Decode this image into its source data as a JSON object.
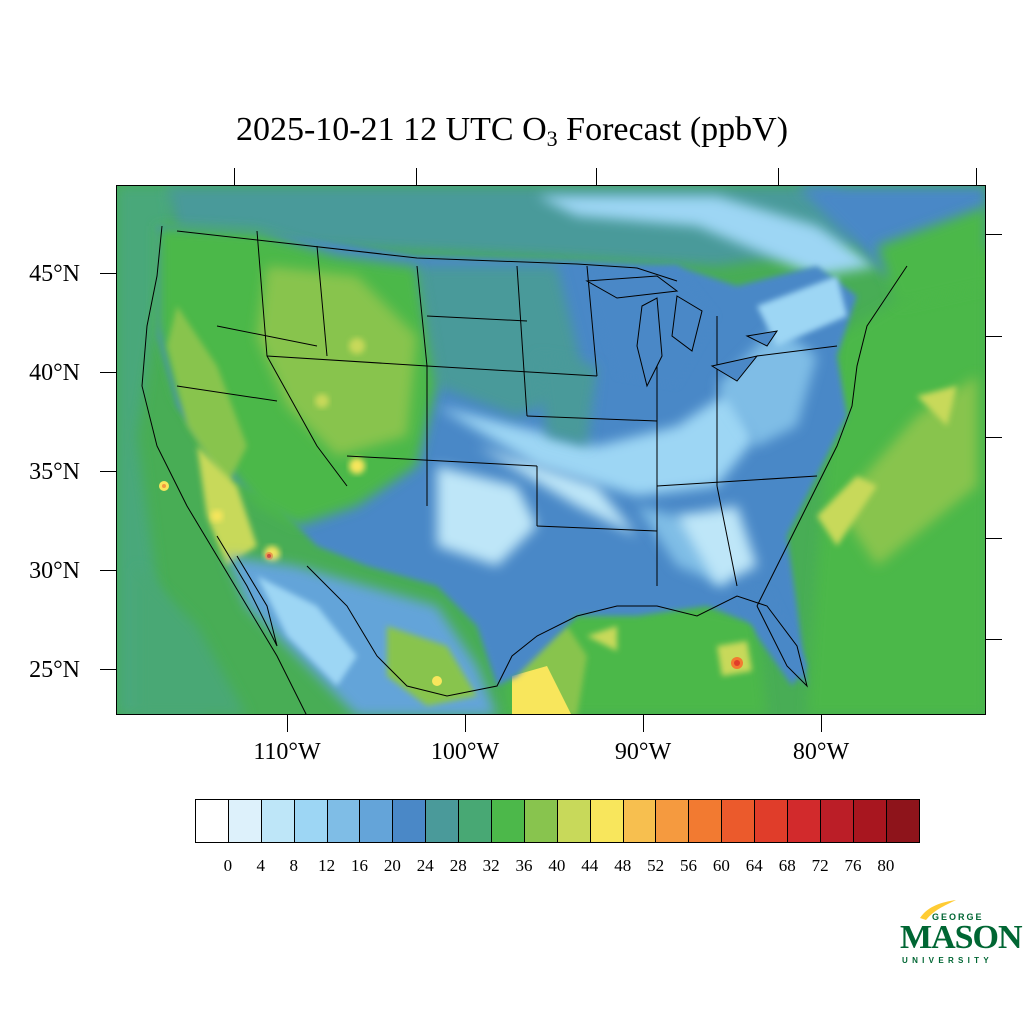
{
  "title": {
    "main": "2025-10-21 12 UTC O",
    "subscript": "3",
    "suffix": " Forecast (ppbV)"
  },
  "latitude_labels": [
    "45°N",
    "40°N",
    "35°N",
    "30°N",
    "25°N"
  ],
  "longitude_labels": [
    "110°W",
    "100°W",
    "90°W",
    "80°W"
  ],
  "colorbar": {
    "labels": [
      "0",
      "4",
      "8",
      "12",
      "16",
      "20",
      "24",
      "28",
      "32",
      "36",
      "40",
      "44",
      "48",
      "52",
      "56",
      "60",
      "64",
      "68",
      "72",
      "76",
      "80"
    ],
    "colors": [
      "#ffffff",
      "#ddf1fb",
      "#bee6f8",
      "#9dd6f4",
      "#7fbde6",
      "#64a4d9",
      "#4a88c7",
      "#4a9a9a",
      "#48a874",
      "#4cb84a",
      "#88c44e",
      "#c8d95a",
      "#f8e65c",
      "#f7bf4f",
      "#f59a3f",
      "#f27a31",
      "#eb5a2c",
      "#e03d2a",
      "#d22a2c",
      "#bb1e27",
      "#a8161f",
      "#8e141b"
    ]
  },
  "logo": {
    "line1": "GEORGE",
    "line2": "MASON",
    "line3": "UNIVERSITY"
  },
  "map": {
    "background": "#3aa160",
    "ocean_color": "#48ad55",
    "land_low_color": "#4a88c7"
  }
}
